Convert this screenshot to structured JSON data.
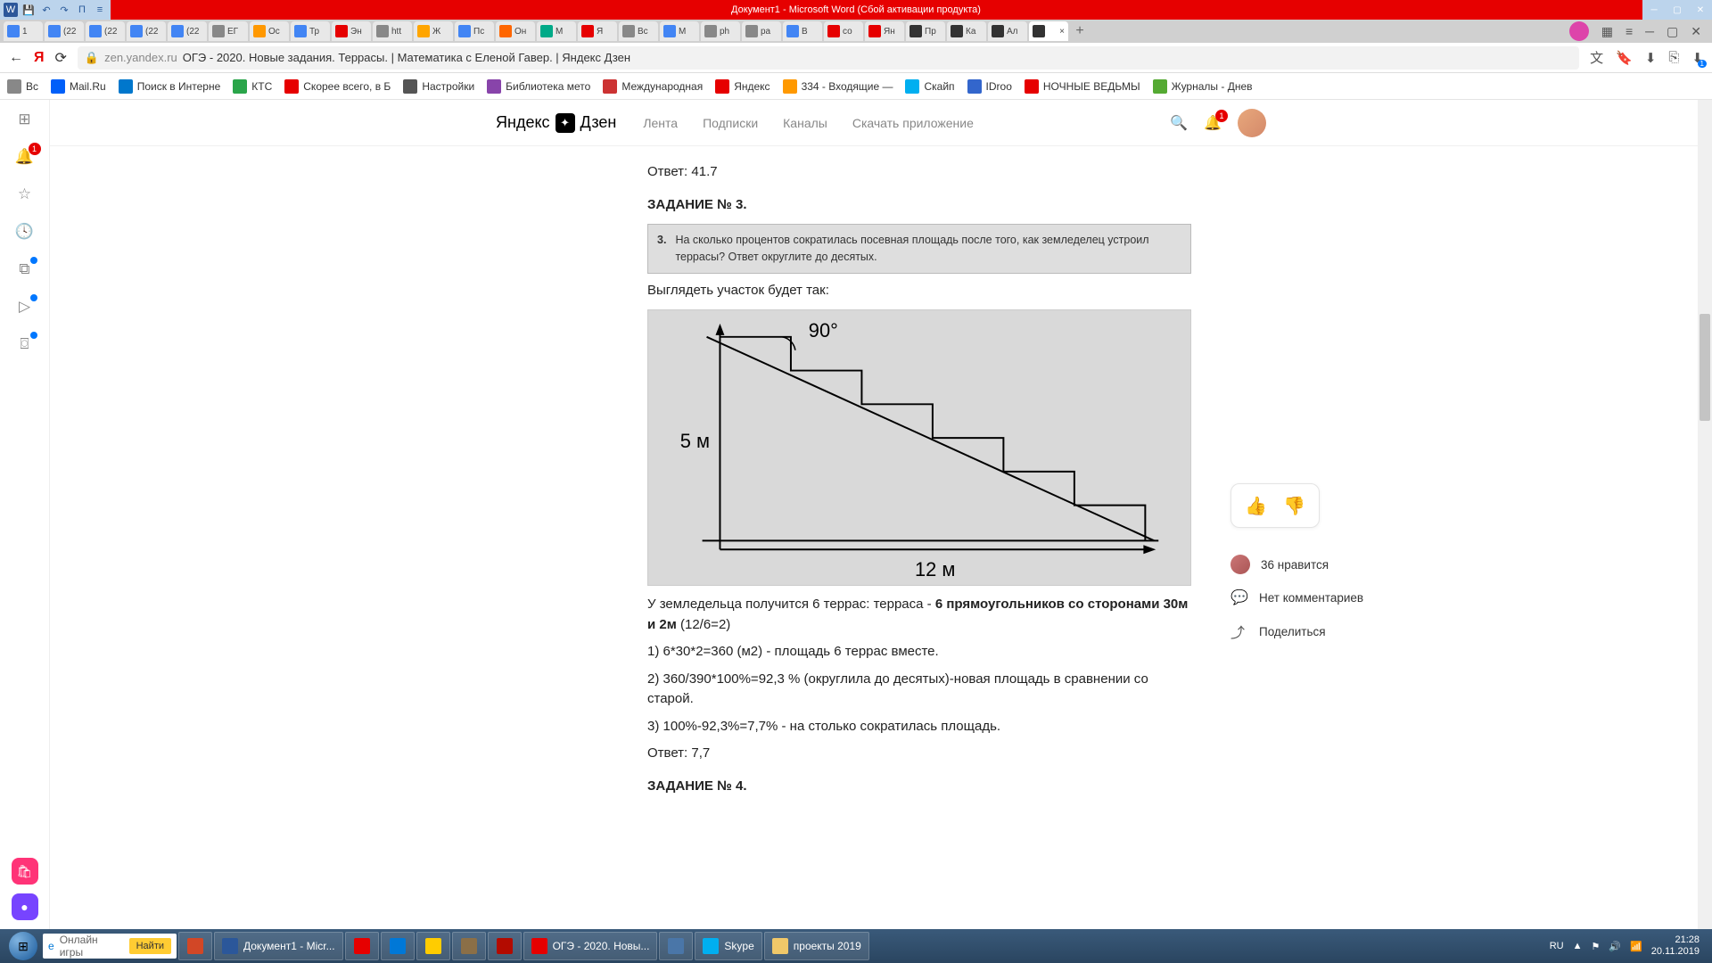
{
  "word": {
    "title": "Документ1 - Microsoft Word (Сбой активации продукта)",
    "qat": [
      "W",
      "💾",
      "↶",
      "↷",
      "Π",
      "≡"
    ]
  },
  "tabs": [
    {
      "label": "1",
      "color": "#4285f4"
    },
    {
      "label": "(22",
      "color": "#4285f4"
    },
    {
      "label": "(22",
      "color": "#4285f4"
    },
    {
      "label": "(22",
      "color": "#4285f4"
    },
    {
      "label": "(22",
      "color": "#4285f4"
    },
    {
      "label": "ЕГ",
      "color": "#888"
    },
    {
      "label": "Ос",
      "color": "#ff9800"
    },
    {
      "label": "Тр",
      "color": "#4285f4"
    },
    {
      "label": "Эн",
      "color": "#e60000"
    },
    {
      "label": "htt",
      "color": "#888"
    },
    {
      "label": "Ж",
      "color": "#ffa500"
    },
    {
      "label": "Пс",
      "color": "#4285f4"
    },
    {
      "label": "Он",
      "color": "#ff6600"
    },
    {
      "label": "М",
      "color": "#00aa88"
    },
    {
      "label": "Я",
      "color": "#e60000"
    },
    {
      "label": "Вс",
      "color": "#888"
    },
    {
      "label": "М",
      "color": "#4285f4"
    },
    {
      "label": "ph",
      "color": "#888"
    },
    {
      "label": "ра",
      "color": "#888"
    },
    {
      "label": "В",
      "color": "#4285f4"
    },
    {
      "label": "со",
      "color": "#e60000"
    },
    {
      "label": "Ян",
      "color": "#e60000"
    },
    {
      "label": "Пр",
      "color": "#333"
    },
    {
      "label": "Ка",
      "color": "#333"
    },
    {
      "label": "Ал",
      "color": "#333"
    },
    {
      "label": "",
      "color": "#333",
      "active": true
    }
  ],
  "address": {
    "domain": "zen.yandex.ru",
    "title": "ОГЭ - 2020. Новые задания. Террасы. | Математика с Еленой Гавер. | Яндекс Дзен"
  },
  "bookmarks": [
    {
      "label": "Вс",
      "color": "#888"
    },
    {
      "label": "Mail.Ru",
      "color": "#005ff9"
    },
    {
      "label": "Поиск в Интерне",
      "color": "#0077cc"
    },
    {
      "label": "КТС",
      "color": "#2aa54a"
    },
    {
      "label": "Скорее всего, в Б",
      "color": "#e60000"
    },
    {
      "label": "Настройки",
      "color": "#555"
    },
    {
      "label": "Библиотека мето",
      "color": "#8844aa"
    },
    {
      "label": "Международная",
      "color": "#cc3333"
    },
    {
      "label": "Яндекс",
      "color": "#e60000"
    },
    {
      "label": "334 - Входящие —",
      "color": "#ff9900"
    },
    {
      "label": "Скайп",
      "color": "#00aff0"
    },
    {
      "label": "IDroo",
      "color": "#3366cc"
    },
    {
      "label": "НОЧНЫЕ ВЕДЬМЫ",
      "color": "#e60000"
    },
    {
      "label": "Журналы - Днев",
      "color": "#55aa33"
    }
  ],
  "zen": {
    "logo": "Яндекс",
    "logo2": "Дзен",
    "nav": [
      "Лента",
      "Подписки",
      "Каналы",
      "Скачать приложение"
    ],
    "bell_count": "1"
  },
  "article": {
    "prev_answer": "Ответ: 41.7",
    "task_title": "ЗАДАНИЕ № 3.",
    "task_num": "3.",
    "task_text": "На сколько процентов сократилась посевная площадь после того, как земледелец устроил террасы? Ответ округлите до десятых.",
    "p_look": "Выглядеть участок будет так:",
    "diagram": {
      "angle": "90°",
      "height": "5 м",
      "width": "12 м"
    },
    "p_terr1": "У земледельца получится 6 террас: терраса - ",
    "p_terr_bold": "6 прямоугольников со сторонами 30м и 2м",
    "p_terr_tail": " (12/6=2)",
    "step1": "1) 6*30*2=360 (м2) - площадь 6 террас вместе.",
    "step2": "2) 360/390*100%=92,3 % (округлила до десятых)-новая площадь в сравнении со старой.",
    "step3": "3) 100%-92,3%=7,7% - на столько сократилась площадь.",
    "answer": "Ответ: 7,7",
    "next_title": "ЗАДАНИЕ № 4."
  },
  "actions": {
    "likes": "36 нравится",
    "comments": "Нет комментариев",
    "share": "Поделиться"
  },
  "taskbar": {
    "search_ph": "Онлайн игры",
    "search_btn": "Найти",
    "items": [
      {
        "label": "",
        "color": "#d24726",
        "small": true
      },
      {
        "label": "Документ1 - Micr...",
        "color": "#2b579a"
      },
      {
        "label": "",
        "color": "#e60000",
        "small": true
      },
      {
        "label": "",
        "color": "#0078d7",
        "small": true
      },
      {
        "label": "",
        "color": "#ffcc00",
        "small": true
      },
      {
        "label": "",
        "color": "#8b6f47",
        "small": true
      },
      {
        "label": "",
        "color": "#b30b00",
        "small": true
      },
      {
        "label": "ОГЭ - 2020. Новы...",
        "color": "#e60000"
      },
      {
        "label": "",
        "color": "#4a76a8",
        "small": true
      },
      {
        "label": "Skype",
        "color": "#00aff0"
      },
      {
        "label": "проекты 2019",
        "color": "#f0c869"
      }
    ],
    "lang": "RU",
    "time": "21:28",
    "date": "20.11.2019"
  }
}
